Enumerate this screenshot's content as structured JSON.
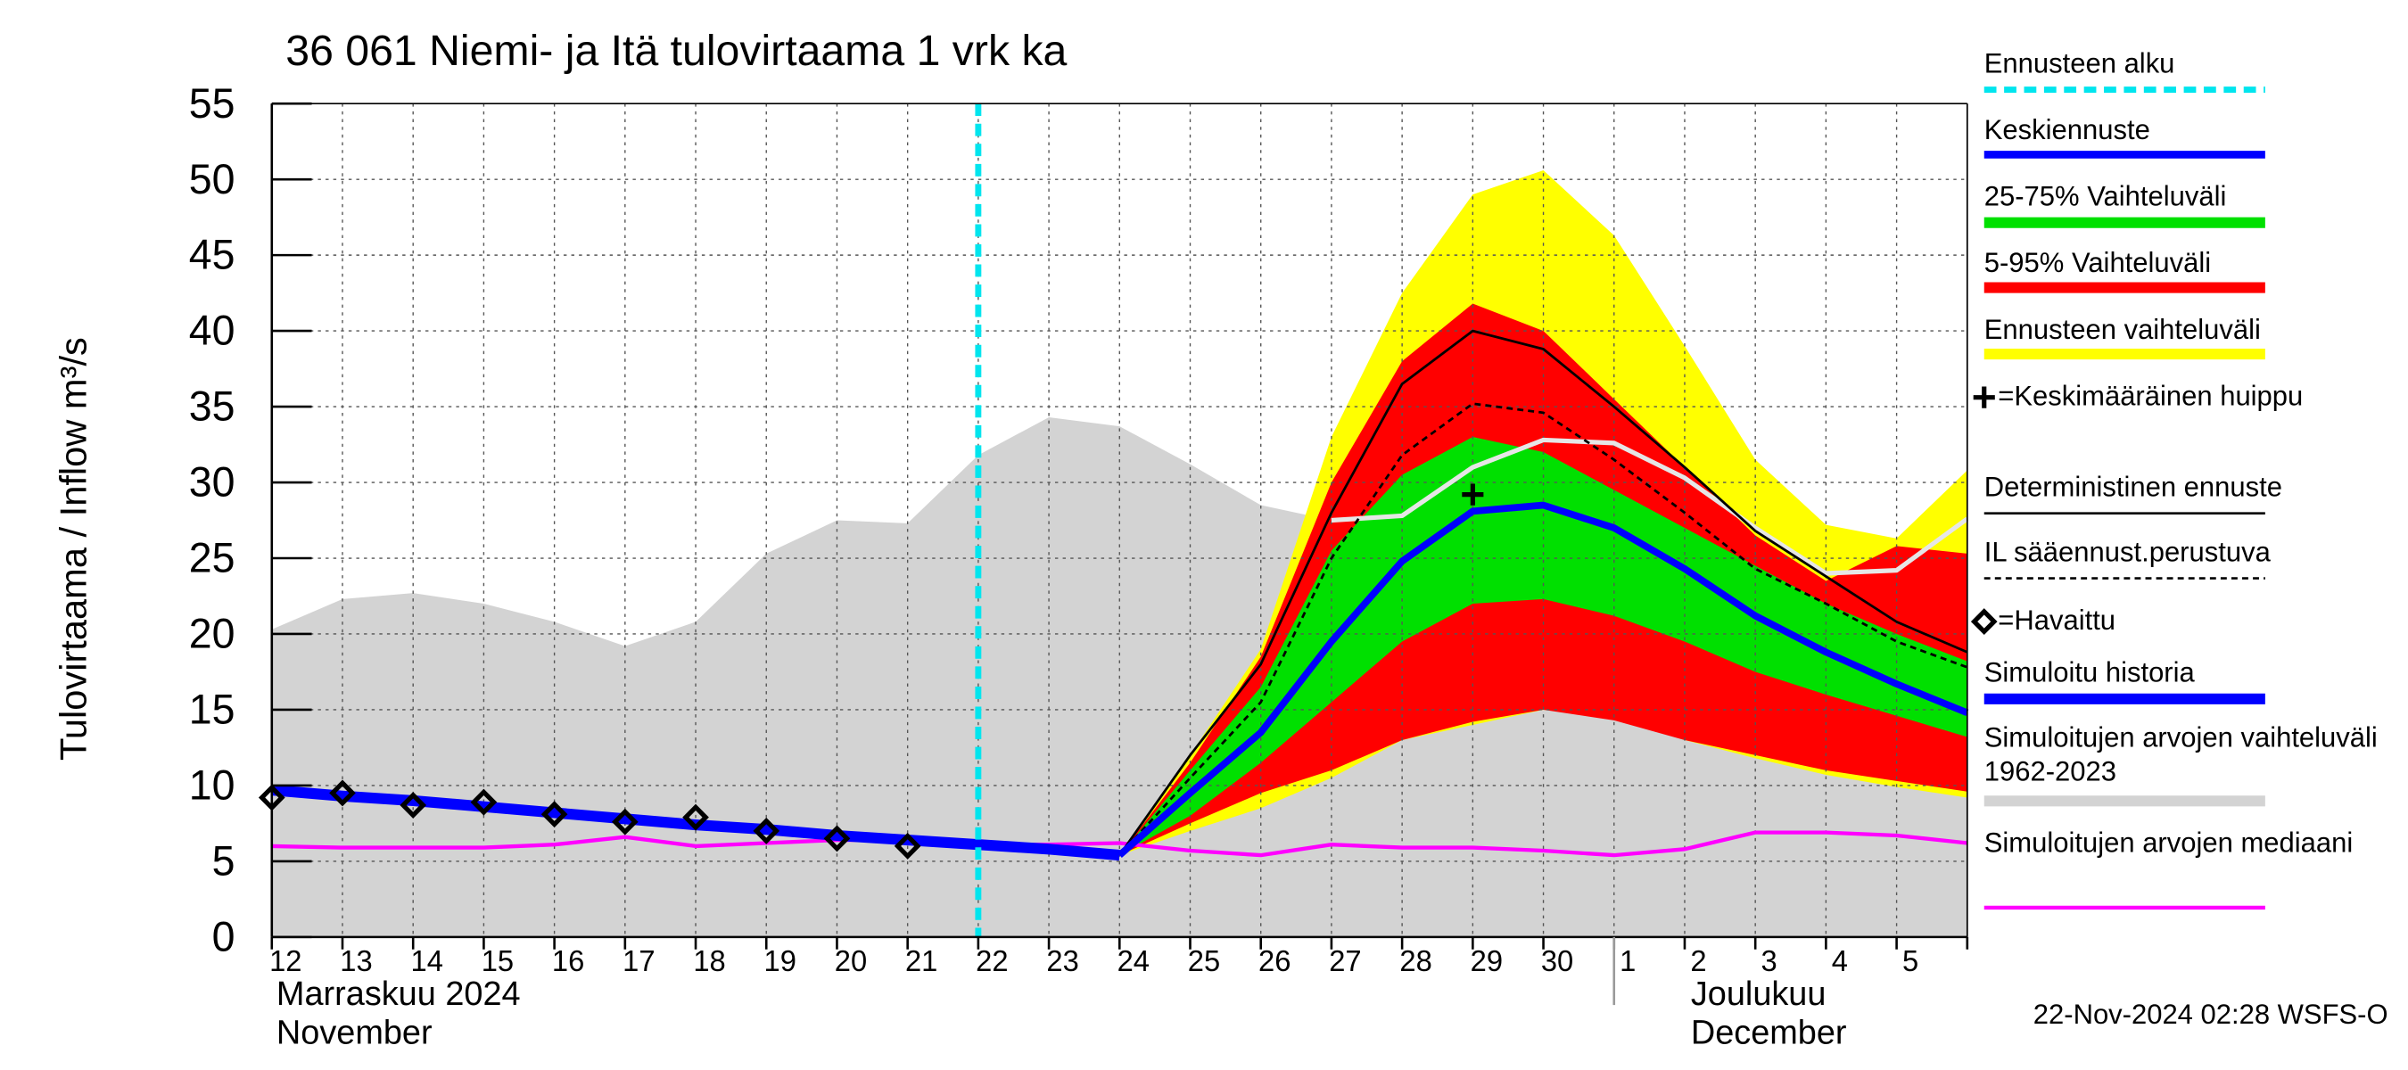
{
  "chart_data": {
    "type": "line",
    "title": "36 061 Niemi- ja Itä tulovirtaama 1 vrk ka",
    "ylabel": "Tulovirtaama / Inflow    m³/s",
    "timestamp": "22-Nov-2024 02:28 WSFS-O",
    "months": [
      {
        "name": "Marraskuu 2024",
        "name_en": "November"
      },
      {
        "name": "Joulukuu",
        "name_en": "December"
      }
    ],
    "categories": [
      "12",
      "13",
      "14",
      "15",
      "16",
      "17",
      "18",
      "19",
      "20",
      "21",
      "22",
      "23",
      "24",
      "25",
      "26",
      "27",
      "28",
      "29",
      "30",
      "1",
      "2",
      "3",
      "4",
      "5",
      null
    ],
    "ylim": [
      0,
      55
    ],
    "yticks": [
      0,
      5,
      10,
      15,
      20,
      25,
      30,
      35,
      40,
      45,
      50,
      55
    ],
    "grid": true,
    "series": [
      {
        "name": "Ennusteen alku",
        "kind": "vline",
        "color": "#00e5ee",
        "linestyle": "dashed",
        "category": "22"
      },
      {
        "name": "Keskiennuste",
        "kind": "line",
        "color": "#0000ff",
        "linestyle": "solid",
        "values": [
          null,
          null,
          null,
          null,
          null,
          null,
          null,
          null,
          null,
          null,
          null,
          null,
          5.4,
          9.5,
          13.5,
          19.5,
          24.8,
          28.1,
          28.5,
          27,
          24.3,
          21.2,
          18.8,
          16.7,
          14.8
        ]
      },
      {
        "name": "25-75% Vaihteluväli",
        "kind": "band",
        "color": "#00e000",
        "upper": [
          null,
          null,
          null,
          null,
          null,
          null,
          null,
          null,
          null,
          null,
          null,
          null,
          5.4,
          11,
          16.5,
          25.5,
          30.5,
          33,
          32,
          29.5,
          27,
          24.5,
          22,
          20,
          18.2
        ],
        "lower": [
          null,
          null,
          null,
          null,
          null,
          null,
          null,
          null,
          null,
          null,
          null,
          null,
          5.4,
          8,
          11.5,
          15.5,
          19.5,
          22,
          22.3,
          21.2,
          19.5,
          17.5,
          16,
          14.6,
          13.2
        ]
      },
      {
        "name": "5-95% Vaihteluväli",
        "kind": "band",
        "color": "#ff0000",
        "upper": [
          null,
          null,
          null,
          null,
          null,
          null,
          null,
          null,
          null,
          null,
          null,
          null,
          5.4,
          11.5,
          18.5,
          30,
          38,
          41.8,
          40,
          35.5,
          31,
          26.5,
          23.5,
          25.8,
          25.3
        ],
        "lower": [
          null,
          null,
          null,
          null,
          null,
          null,
          null,
          null,
          null,
          null,
          null,
          null,
          5.4,
          7.5,
          9.5,
          11,
          13,
          14.2,
          15,
          14.3,
          13,
          12,
          11,
          10.3,
          9.6
        ]
      },
      {
        "name": "Ennusteen vaihteluväli",
        "kind": "band",
        "color": "#ffff00",
        "upper": [
          null,
          null,
          null,
          null,
          null,
          null,
          null,
          null,
          null,
          null,
          null,
          null,
          5.4,
          12,
          19,
          33,
          42.5,
          49,
          50.6,
          46.3,
          39,
          31.5,
          27.2,
          26.3,
          30.8
        ],
        "lower": [
          null,
          null,
          null,
          null,
          null,
          null,
          null,
          null,
          null,
          null,
          null,
          null,
          5.4,
          7,
          8.5,
          10.5,
          13,
          14,
          15,
          14.5,
          13,
          11.8,
          10.7,
          9.9,
          9.2
        ]
      },
      {
        "name": "=Keskimääräinen huippu",
        "kind": "marker",
        "symbol": "plus",
        "color": "#000000",
        "values": [
          null,
          null,
          null,
          null,
          null,
          null,
          null,
          null,
          null,
          null,
          null,
          null,
          null,
          null,
          null,
          null,
          null,
          29.2,
          null,
          null,
          null,
          null,
          null,
          null,
          null
        ]
      },
      {
        "name": "Deterministinen ennuste",
        "kind": "line",
        "color": "#000000",
        "linestyle": "solid",
        "values": [
          null,
          null,
          null,
          null,
          null,
          null,
          null,
          null,
          null,
          null,
          null,
          null,
          5.4,
          12,
          18,
          28,
          36.5,
          40,
          38.8,
          35,
          31,
          26.8,
          23.8,
          20.8,
          18.8
        ]
      },
      {
        "name": "IL sääennust.perustuva",
        "kind": "line",
        "color": "#000000",
        "linestyle": "dotted",
        "values": [
          null,
          null,
          null,
          null,
          null,
          null,
          null,
          null,
          null,
          null,
          null,
          null,
          5.4,
          10.5,
          15.5,
          25,
          31.8,
          35.2,
          34.6,
          31.5,
          28,
          24.3,
          22,
          19.5,
          17.8
        ]
      },
      {
        "name": "=Havaittu",
        "kind": "marker",
        "symbol": "diamond",
        "color": "#000000",
        "values": [
          9.2,
          9.5,
          8.7,
          8.9,
          8.1,
          7.6,
          7.9,
          7.0,
          6.5,
          6.0,
          null,
          null,
          null,
          null,
          null,
          null,
          null,
          null,
          null,
          null,
          null,
          null,
          null,
          null,
          null
        ]
      },
      {
        "name": "Simuloitu historia",
        "kind": "line",
        "color": "#0000ff",
        "linestyle": "solid",
        "values": [
          9.7,
          9.3,
          9.0,
          8.6,
          8.2,
          7.8,
          7.4,
          7.1,
          6.7,
          6.4,
          6.1,
          5.8,
          5.4,
          null,
          null,
          null,
          null,
          null,
          null,
          null,
          null,
          null,
          null,
          null,
          null
        ]
      },
      {
        "name": "Simuloitujen arvojen vaihteluväli 1962-2023",
        "kind": "area",
        "color": "#d3d3d3",
        "values": [
          20.3,
          22.3,
          22.7,
          22.0,
          20.8,
          19.2,
          20.8,
          25.3,
          27.5,
          27.3,
          31.8,
          34.3,
          33.7,
          31.2,
          28.5,
          27.5,
          27.8,
          31,
          32.8,
          32.6,
          30.3,
          27,
          24,
          24.2,
          27.6
        ]
      },
      {
        "name": "Simuloitujen arvojen mediaani",
        "kind": "line",
        "color": "#ff00ff",
        "linestyle": "solid",
        "values": [
          6.0,
          5.9,
          5.9,
          5.9,
          6.1,
          6.6,
          6.0,
          6.2,
          6.4,
          6.4,
          6.1,
          6.1,
          6.2,
          5.7,
          5.4,
          6.1,
          5.9,
          5.9,
          5.7,
          5.4,
          5.8,
          6.9,
          6.9,
          6.7,
          6.2
        ]
      }
    ]
  }
}
